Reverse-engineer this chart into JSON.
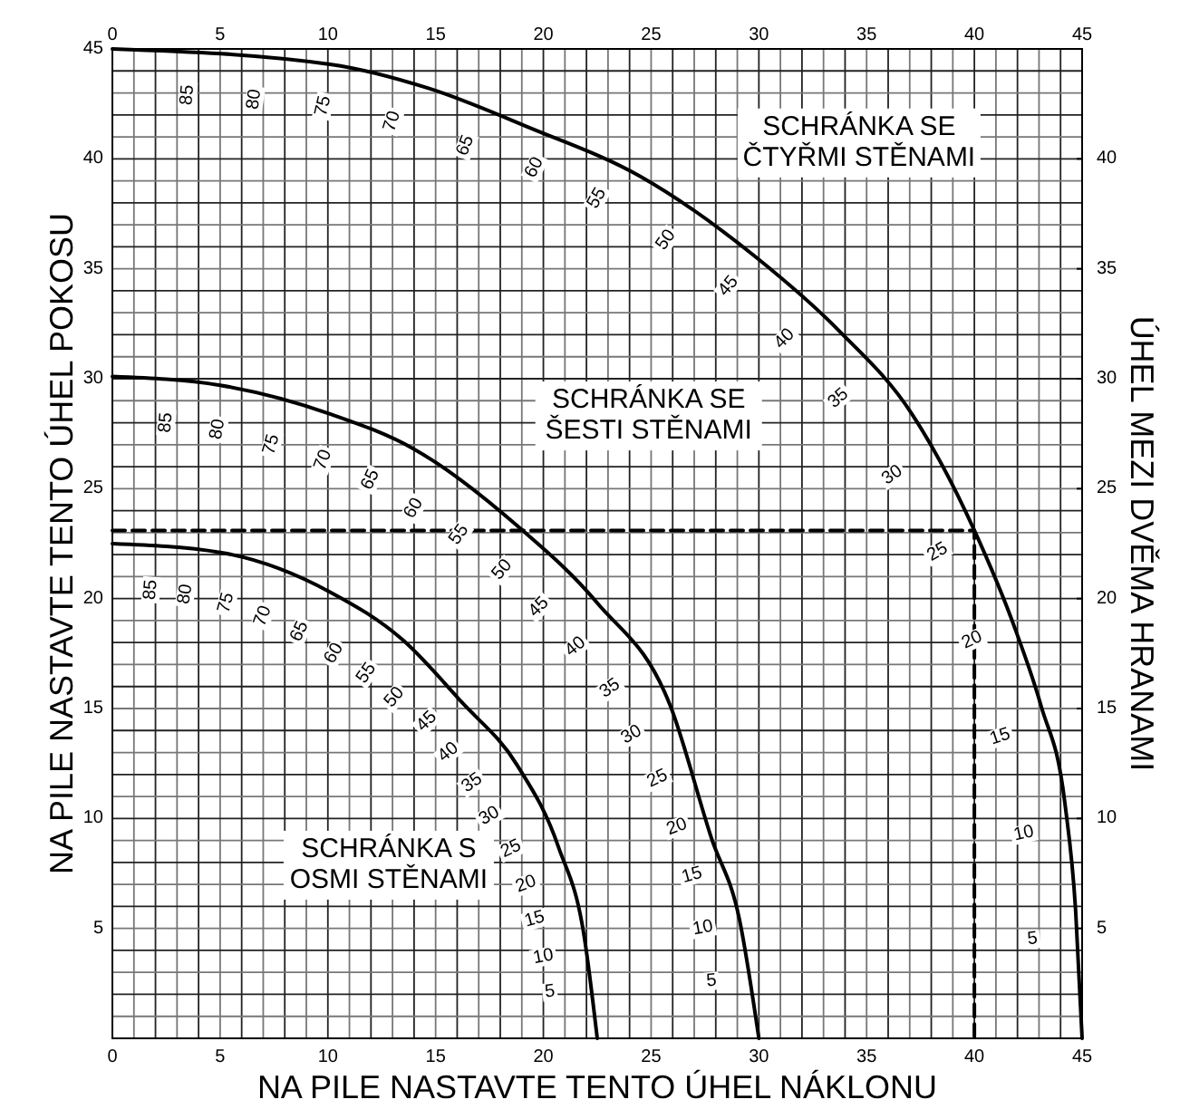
{
  "chart_data": {
    "type": "line",
    "xlabel": "NA PILE NASTAVTE TENTO ÚHEL NÁKLONU",
    "ylabel": "NA PILE NASTAVTE TENTO ÚHEL POKOSU",
    "y2label": "ÚHEL MEZI DVĚMA HRANAMI",
    "xlim": [
      0,
      45
    ],
    "ylim": [
      0,
      45
    ],
    "x2lim": [
      0,
      45
    ],
    "y2lim": [
      0,
      45
    ],
    "xticks": [
      0,
      {
        "value": 1,
        "label": null
      },
      {
        "value": 2,
        "label": null
      },
      {
        "value": 3,
        "label": null
      },
      {
        "value": 4,
        "label": null
      },
      5,
      {
        "value": 6,
        "label": null
      },
      {
        "value": 7,
        "label": null
      },
      {
        "value": 8,
        "label": null
      },
      {
        "value": 9,
        "label": null
      },
      10,
      {
        "value": 11,
        "label": null
      },
      {
        "value": 12,
        "label": null
      },
      {
        "value": 13,
        "label": null
      },
      {
        "value": 14,
        "label": null
      },
      15,
      {
        "value": 16,
        "label": null
      },
      {
        "value": 17,
        "label": null
      },
      {
        "value": 18,
        "label": null
      },
      {
        "value": 19,
        "label": null
      },
      20,
      {
        "value": 21,
        "label": null
      },
      {
        "value": 22,
        "label": null
      },
      {
        "value": 23,
        "label": null
      },
      {
        "value": 24,
        "label": null
      },
      25,
      {
        "value": 26,
        "label": null
      },
      {
        "value": 27,
        "label": null
      },
      {
        "value": 28,
        "label": null
      },
      {
        "value": 29,
        "label": null
      },
      30,
      {
        "value": 31,
        "label": null
      },
      {
        "value": 32,
        "label": null
      },
      {
        "value": 33,
        "label": null
      },
      {
        "value": 34,
        "label": null
      },
      35,
      {
        "value": 36,
        "label": null
      },
      {
        "value": 37,
        "label": null
      },
      {
        "value": 38,
        "label": null
      },
      {
        "value": 39,
        "label": null
      },
      40,
      {
        "value": 41,
        "label": null
      },
      {
        "value": 42,
        "label": null
      },
      {
        "value": 43,
        "label": null
      },
      {
        "value": 44,
        "label": null
      },
      45
    ],
    "x2ticks": [
      0,
      5,
      10,
      15,
      20,
      25,
      30,
      35,
      40,
      45
    ],
    "yticks": [
      {
        "value": 0,
        "label": null
      },
      {
        "value": 1,
        "label": null
      },
      {
        "value": 2,
        "label": null
      },
      {
        "value": 3,
        "label": null
      },
      {
        "value": 4,
        "label": null
      },
      5,
      {
        "value": 6,
        "label": null
      },
      {
        "value": 7,
        "label": null
      },
      {
        "value": 8,
        "label": null
      },
      {
        "value": 9,
        "label": null
      },
      10,
      {
        "value": 11,
        "label": null
      },
      {
        "value": 12,
        "label": null
      },
      {
        "value": 13,
        "label": null
      },
      {
        "value": 14,
        "label": null
      },
      15,
      {
        "value": 16,
        "label": null
      },
      {
        "value": 17,
        "label": null
      },
      {
        "value": 18,
        "label": null
      },
      {
        "value": 19,
        "label": null
      },
      20,
      {
        "value": 21,
        "label": null
      },
      {
        "value": 22,
        "label": null
      },
      {
        "value": 23,
        "label": null
      },
      {
        "value": 24,
        "label": null
      },
      25,
      {
        "value": 26,
        "label": null
      },
      {
        "value": 27,
        "label": null
      },
      {
        "value": 28,
        "label": null
      },
      {
        "value": 29,
        "label": null
      },
      30,
      {
        "value": 31,
        "label": null
      },
      {
        "value": 32,
        "label": null
      },
      {
        "value": 33,
        "label": null
      },
      {
        "value": 34,
        "label": null
      },
      35,
      {
        "value": 36,
        "label": null
      },
      {
        "value": 37,
        "label": null
      },
      {
        "value": 38,
        "label": null
      },
      {
        "value": 39,
        "label": null
      },
      40,
      {
        "value": 41,
        "label": null
      },
      {
        "value": 42,
        "label": null
      },
      {
        "value": 43,
        "label": null
      },
      {
        "value": 44,
        "label": null
      },
      45
    ],
    "y2ticks": [
      5,
      10,
      15,
      20,
      25,
      30,
      35,
      40
    ],
    "grid": true,
    "marker": "none",
    "series": [
      {
        "name": "SCHRÁNKA SE ČTYŘMI STĚNAMI",
        "color": "#000000",
        "x": [
          0,
          10.1,
          14.7,
          19.4,
          24.5,
          29.9,
          33.7,
          37.1,
          40,
          41.9,
          43.1,
          44.2,
          44.7,
          45
        ],
        "values": [
          45,
          44.3,
          43.2,
          41.4,
          39.2,
          35.5,
          32.2,
          28.4,
          23.1,
          18.6,
          15.1,
          10.7,
          5.8,
          0
        ]
      },
      {
        "name": "SCHRÁNKA SE ŠESTI STĚNAMI",
        "color": "#000000",
        "x": [
          0,
          5,
          10.1,
          14,
          18.8,
          22.5,
          25.9,
          27.8,
          29.1,
          30
        ],
        "values": [
          30.1,
          29.7,
          28.4,
          26.8,
          23.3,
          19.8,
          15.1,
          9.1,
          5.4,
          0
        ]
      },
      {
        "name": "SCHRÁNKA S OSMI STĚNAMI",
        "color": "#000000",
        "x": [
          0,
          5,
          10.1,
          13.5,
          16.2,
          18.8,
          20.7,
          21.9,
          22.5
        ],
        "values": [
          22.5,
          22.1,
          20.3,
          18.1,
          15.3,
          12.4,
          8.7,
          4.6,
          0
        ]
      },
      {
        "color": "#000000",
        "line_style": "dashed",
        "x": [
          0,
          40,
          40
        ],
        "values": [
          23.1,
          23.1,
          0
        ]
      }
    ],
    "annotations": [
      {
        "text": "85",
        "x": 3.5,
        "y": 42.9
      },
      {
        "text": "80",
        "x": 6.6,
        "y": 42.7
      },
      {
        "text": "75",
        "x": 9.8,
        "y": 42.4
      },
      {
        "text": "70",
        "x": 13,
        "y": 41.7
      },
      {
        "text": "65",
        "x": 16.4,
        "y": 40.6
      },
      {
        "text": "60",
        "x": 19.6,
        "y": 39.6
      },
      {
        "text": "55",
        "x": 22.5,
        "y": 38.2
      },
      {
        "text": "50",
        "x": 25.7,
        "y": 36.3
      },
      {
        "text": "45",
        "x": 28.6,
        "y": 34.2
      },
      {
        "text": "40",
        "x": 31.2,
        "y": 31.8
      },
      {
        "text": "35",
        "x": 33.7,
        "y": 29.1
      },
      {
        "text": "30",
        "x": 36.2,
        "y": 25.6
      },
      {
        "text": "25",
        "x": 38.3,
        "y": 22.1
      },
      {
        "text": "20",
        "x": 39.9,
        "y": 18.1
      },
      {
        "text": "15",
        "x": 41.2,
        "y": 13.7
      },
      {
        "text": "10",
        "x": 42.3,
        "y": 9.3
      },
      {
        "text": "5",
        "x": 42.7,
        "y": 4.5
      },
      {
        "text": "85",
        "x": 2.5,
        "y": 28
      },
      {
        "text": "80",
        "x": 4.9,
        "y": 27.7
      },
      {
        "text": "75",
        "x": 7.4,
        "y": 27
      },
      {
        "text": "70",
        "x": 9.8,
        "y": 26.3
      },
      {
        "text": "65",
        "x": 12,
        "y": 25.4
      },
      {
        "text": "60",
        "x": 14,
        "y": 24.1
      },
      {
        "text": "55",
        "x": 16.1,
        "y": 22.9
      },
      {
        "text": "50",
        "x": 18.1,
        "y": 21.3
      },
      {
        "text": "45",
        "x": 19.8,
        "y": 19.6
      },
      {
        "text": "40",
        "x": 21.5,
        "y": 17.8
      },
      {
        "text": "35",
        "x": 23.1,
        "y": 15.9
      },
      {
        "text": "30",
        "x": 24.1,
        "y": 13.8
      },
      {
        "text": "25",
        "x": 25.3,
        "y": 11.8
      },
      {
        "text": "20",
        "x": 26.2,
        "y": 9.6
      },
      {
        "text": "15",
        "x": 26.9,
        "y": 7.4
      },
      {
        "text": "10",
        "x": 27.4,
        "y": 5
      },
      {
        "text": "5",
        "x": 27.8,
        "y": 2.6
      },
      {
        "text": "85",
        "x": 1.8,
        "y": 20.4
      },
      {
        "text": "80",
        "x": 3.4,
        "y": 20.2
      },
      {
        "text": "75",
        "x": 5.3,
        "y": 19.8
      },
      {
        "text": "70",
        "x": 7,
        "y": 19.2
      },
      {
        "text": "65",
        "x": 8.7,
        "y": 18.5
      },
      {
        "text": "60",
        "x": 10.3,
        "y": 17.5
      },
      {
        "text": "55",
        "x": 11.8,
        "y": 16.6
      },
      {
        "text": "50",
        "x": 13.1,
        "y": 15.5
      },
      {
        "text": "45",
        "x": 14.6,
        "y": 14.4
      },
      {
        "text": "40",
        "x": 15.6,
        "y": 13
      },
      {
        "text": "35",
        "x": 16.7,
        "y": 11.6
      },
      {
        "text": "30",
        "x": 17.5,
        "y": 10.1
      },
      {
        "text": "25",
        "x": 18.5,
        "y": 8.6
      },
      {
        "text": "20",
        "x": 19.2,
        "y": 7
      },
      {
        "text": "15",
        "x": 19.6,
        "y": 5.4
      },
      {
        "text": "10",
        "x": 20,
        "y": 3.7
      },
      {
        "text": "5",
        "x": 20.3,
        "y": 2.1
      }
    ]
  }
}
